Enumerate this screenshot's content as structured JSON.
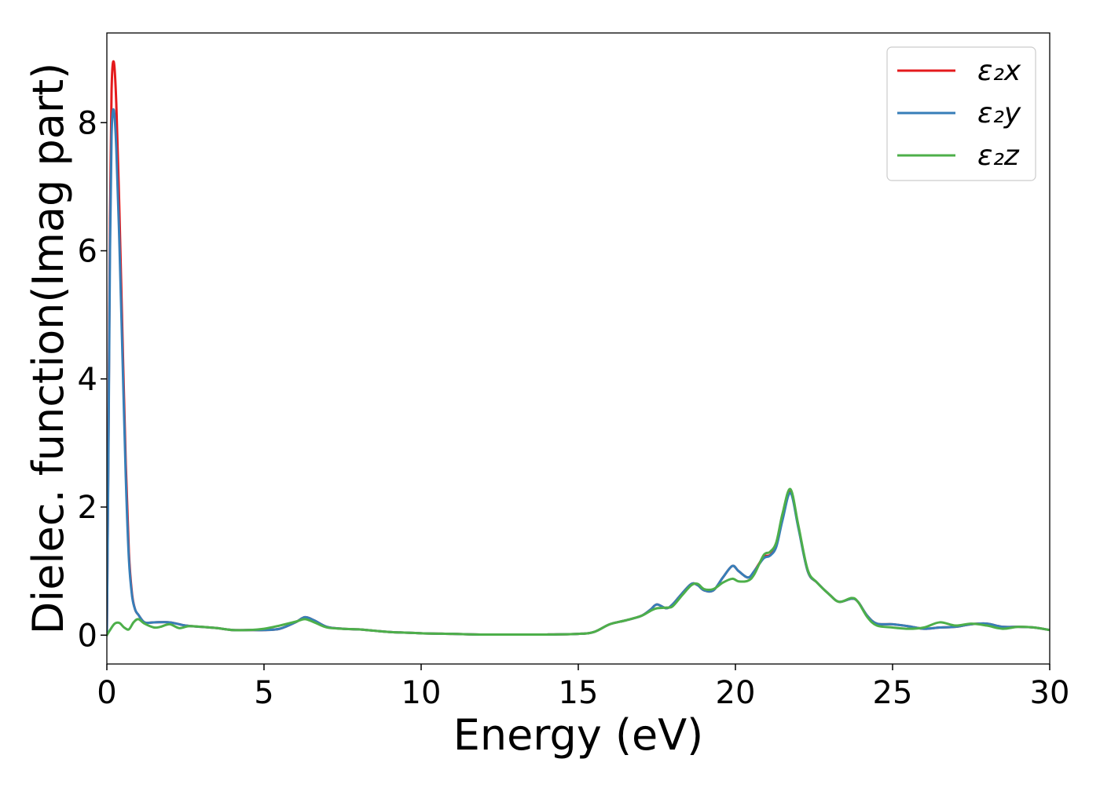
{
  "chart_data": {
    "type": "line",
    "title": "",
    "xlabel": "Energy (eV)",
    "ylabel": "Dielec. function(Imag part)",
    "xlim": [
      0,
      30
    ],
    "ylim": [
      -0.45,
      9.4
    ],
    "xticks": [
      0,
      5,
      10,
      15,
      20,
      25,
      30
    ],
    "yticks": [
      0,
      2,
      4,
      6,
      8
    ],
    "grid": false,
    "legend_position": "top-right",
    "series": [
      {
        "name": "ε₂x",
        "color": "#e41a1c",
        "points": [
          [
            0,
            0
          ],
          [
            0.05,
            3.0
          ],
          [
            0.1,
            6.5
          ],
          [
            0.15,
            8.5
          ],
          [
            0.22,
            8.95
          ],
          [
            0.3,
            8.3
          ],
          [
            0.4,
            6.6
          ],
          [
            0.5,
            4.6
          ],
          [
            0.6,
            2.7
          ],
          [
            0.7,
            1.3
          ],
          [
            0.8,
            0.65
          ],
          [
            0.9,
            0.4
          ],
          [
            1.0,
            0.32
          ],
          [
            1.2,
            0.2
          ],
          [
            1.5,
            0.2
          ],
          [
            2.0,
            0.2
          ],
          [
            2.5,
            0.15
          ],
          [
            3.0,
            0.13
          ],
          [
            3.5,
            0.11
          ],
          [
            4.0,
            0.08
          ],
          [
            4.5,
            0.08
          ],
          [
            5.0,
            0.08
          ],
          [
            5.5,
            0.1
          ],
          [
            6.0,
            0.2
          ],
          [
            6.3,
            0.28
          ],
          [
            6.6,
            0.23
          ],
          [
            7.0,
            0.13
          ],
          [
            7.5,
            0.1
          ],
          [
            8.0,
            0.09
          ],
          [
            8.5,
            0.07
          ],
          [
            9.0,
            0.05
          ],
          [
            10.0,
            0.03
          ],
          [
            11.0,
            0.02
          ],
          [
            12.0,
            0.01
          ],
          [
            13.0,
            0.01
          ],
          [
            14.0,
            0.01
          ],
          [
            15.0,
            0.02
          ],
          [
            15.5,
            0.05
          ],
          [
            16.0,
            0.17
          ],
          [
            16.5,
            0.23
          ],
          [
            17.0,
            0.3
          ],
          [
            17.3,
            0.4
          ],
          [
            17.5,
            0.48
          ],
          [
            17.8,
            0.42
          ],
          [
            18.0,
            0.48
          ],
          [
            18.3,
            0.65
          ],
          [
            18.6,
            0.8
          ],
          [
            18.8,
            0.78
          ],
          [
            19.0,
            0.7
          ],
          [
            19.3,
            0.7
          ],
          [
            19.6,
            0.9
          ],
          [
            19.9,
            1.08
          ],
          [
            20.1,
            1.0
          ],
          [
            20.4,
            0.9
          ],
          [
            20.6,
            1.0
          ],
          [
            20.9,
            1.22
          ],
          [
            21.1,
            1.25
          ],
          [
            21.3,
            1.4
          ],
          [
            21.5,
            1.85
          ],
          [
            21.75,
            2.25
          ],
          [
            22.0,
            1.7
          ],
          [
            22.3,
            1.0
          ],
          [
            22.6,
            0.82
          ],
          [
            23.0,
            0.63
          ],
          [
            23.3,
            0.52
          ],
          [
            23.7,
            0.57
          ],
          [
            23.9,
            0.52
          ],
          [
            24.2,
            0.3
          ],
          [
            24.5,
            0.18
          ],
          [
            25.0,
            0.17
          ],
          [
            25.5,
            0.14
          ],
          [
            26.0,
            0.1
          ],
          [
            26.5,
            0.12
          ],
          [
            27.0,
            0.13
          ],
          [
            27.5,
            0.17
          ],
          [
            28.0,
            0.18
          ],
          [
            28.5,
            0.13
          ],
          [
            29.0,
            0.13
          ],
          [
            29.5,
            0.12
          ],
          [
            30.0,
            0.08
          ]
        ]
      },
      {
        "name": "ε₂y",
        "color": "#377eb8",
        "points": [
          [
            0,
            0
          ],
          [
            0.05,
            2.8
          ],
          [
            0.1,
            6.0
          ],
          [
            0.15,
            7.8
          ],
          [
            0.22,
            8.2
          ],
          [
            0.3,
            7.6
          ],
          [
            0.4,
            6.1
          ],
          [
            0.5,
            4.3
          ],
          [
            0.6,
            2.5
          ],
          [
            0.7,
            1.2
          ],
          [
            0.8,
            0.62
          ],
          [
            0.9,
            0.4
          ],
          [
            1.0,
            0.32
          ],
          [
            1.2,
            0.2
          ],
          [
            1.5,
            0.2
          ],
          [
            2.0,
            0.2
          ],
          [
            2.5,
            0.15
          ],
          [
            3.0,
            0.13
          ],
          [
            3.5,
            0.11
          ],
          [
            4.0,
            0.08
          ],
          [
            4.5,
            0.08
          ],
          [
            5.0,
            0.08
          ],
          [
            5.5,
            0.1
          ],
          [
            6.0,
            0.2
          ],
          [
            6.3,
            0.28
          ],
          [
            6.6,
            0.23
          ],
          [
            7.0,
            0.13
          ],
          [
            7.5,
            0.1
          ],
          [
            8.0,
            0.09
          ],
          [
            8.5,
            0.07
          ],
          [
            9.0,
            0.05
          ],
          [
            10.0,
            0.03
          ],
          [
            11.0,
            0.02
          ],
          [
            12.0,
            0.01
          ],
          [
            13.0,
            0.01
          ],
          [
            14.0,
            0.01
          ],
          [
            15.0,
            0.02
          ],
          [
            15.5,
            0.05
          ],
          [
            16.0,
            0.17
          ],
          [
            16.5,
            0.23
          ],
          [
            17.0,
            0.3
          ],
          [
            17.3,
            0.4
          ],
          [
            17.5,
            0.48
          ],
          [
            17.8,
            0.42
          ],
          [
            18.0,
            0.48
          ],
          [
            18.3,
            0.65
          ],
          [
            18.6,
            0.8
          ],
          [
            18.8,
            0.78
          ],
          [
            19.0,
            0.7
          ],
          [
            19.3,
            0.7
          ],
          [
            19.6,
            0.9
          ],
          [
            19.9,
            1.08
          ],
          [
            20.1,
            1.0
          ],
          [
            20.4,
            0.9
          ],
          [
            20.6,
            1.0
          ],
          [
            20.9,
            1.2
          ],
          [
            21.1,
            1.24
          ],
          [
            21.3,
            1.38
          ],
          [
            21.5,
            1.8
          ],
          [
            21.75,
            2.22
          ],
          [
            22.0,
            1.68
          ],
          [
            22.3,
            1.0
          ],
          [
            22.6,
            0.82
          ],
          [
            23.0,
            0.63
          ],
          [
            23.3,
            0.52
          ],
          [
            23.7,
            0.57
          ],
          [
            23.9,
            0.52
          ],
          [
            24.2,
            0.3
          ],
          [
            24.5,
            0.18
          ],
          [
            25.0,
            0.17
          ],
          [
            25.5,
            0.14
          ],
          [
            26.0,
            0.1
          ],
          [
            26.5,
            0.12
          ],
          [
            27.0,
            0.13
          ],
          [
            27.5,
            0.17
          ],
          [
            28.0,
            0.18
          ],
          [
            28.5,
            0.13
          ],
          [
            29.0,
            0.13
          ],
          [
            29.5,
            0.12
          ],
          [
            30.0,
            0.08
          ]
        ]
      },
      {
        "name": "ε₂z",
        "color": "#4daf4a",
        "points": [
          [
            0,
            0
          ],
          [
            0.1,
            0.08
          ],
          [
            0.25,
            0.18
          ],
          [
            0.4,
            0.19
          ],
          [
            0.55,
            0.12
          ],
          [
            0.7,
            0.09
          ],
          [
            0.85,
            0.2
          ],
          [
            1.0,
            0.25
          ],
          [
            1.2,
            0.18
          ],
          [
            1.5,
            0.12
          ],
          [
            1.7,
            0.13
          ],
          [
            2.0,
            0.17
          ],
          [
            2.3,
            0.11
          ],
          [
            2.6,
            0.14
          ],
          [
            3.0,
            0.13
          ],
          [
            3.5,
            0.11
          ],
          [
            4.0,
            0.08
          ],
          [
            4.5,
            0.08
          ],
          [
            5.0,
            0.1
          ],
          [
            5.5,
            0.15
          ],
          [
            6.0,
            0.21
          ],
          [
            6.3,
            0.25
          ],
          [
            6.6,
            0.2
          ],
          [
            7.0,
            0.12
          ],
          [
            7.5,
            0.1
          ],
          [
            8.0,
            0.09
          ],
          [
            8.5,
            0.07
          ],
          [
            9.0,
            0.05
          ],
          [
            10.0,
            0.03
          ],
          [
            11.0,
            0.02
          ],
          [
            12.0,
            0.01
          ],
          [
            13.0,
            0.01
          ],
          [
            14.0,
            0.01
          ],
          [
            15.0,
            0.02
          ],
          [
            15.5,
            0.05
          ],
          [
            16.0,
            0.17
          ],
          [
            16.5,
            0.23
          ],
          [
            17.0,
            0.3
          ],
          [
            17.3,
            0.38
          ],
          [
            17.5,
            0.42
          ],
          [
            17.8,
            0.43
          ],
          [
            18.0,
            0.45
          ],
          [
            18.3,
            0.62
          ],
          [
            18.6,
            0.78
          ],
          [
            18.8,
            0.8
          ],
          [
            19.0,
            0.72
          ],
          [
            19.3,
            0.72
          ],
          [
            19.6,
            0.82
          ],
          [
            19.9,
            0.88
          ],
          [
            20.1,
            0.84
          ],
          [
            20.4,
            0.85
          ],
          [
            20.6,
            0.95
          ],
          [
            20.9,
            1.25
          ],
          [
            21.1,
            1.3
          ],
          [
            21.3,
            1.45
          ],
          [
            21.5,
            1.9
          ],
          [
            21.75,
            2.28
          ],
          [
            22.0,
            1.72
          ],
          [
            22.3,
            1.02
          ],
          [
            22.6,
            0.82
          ],
          [
            23.0,
            0.63
          ],
          [
            23.3,
            0.52
          ],
          [
            23.7,
            0.58
          ],
          [
            23.9,
            0.52
          ],
          [
            24.2,
            0.28
          ],
          [
            24.5,
            0.15
          ],
          [
            25.0,
            0.12
          ],
          [
            25.5,
            0.1
          ],
          [
            26.0,
            0.12
          ],
          [
            26.5,
            0.2
          ],
          [
            27.0,
            0.15
          ],
          [
            27.5,
            0.18
          ],
          [
            28.0,
            0.15
          ],
          [
            28.5,
            0.1
          ],
          [
            29.0,
            0.13
          ],
          [
            29.5,
            0.12
          ],
          [
            30.0,
            0.08
          ]
        ]
      }
    ]
  }
}
